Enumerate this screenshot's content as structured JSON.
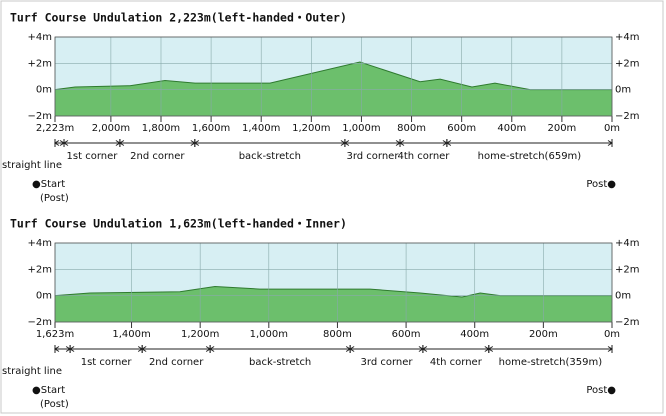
{
  "chart_data": [
    {
      "type": "area",
      "title": "Turf  Course  Undulation  2,223m(left-handed・Outer)",
      "x": [
        2223,
        2143,
        1924,
        1784,
        1664,
        1365,
        1006,
        766,
        686,
        559,
        467,
        327,
        0
      ],
      "values": [
        0,
        0.2,
        0.3,
        0.7,
        0.5,
        0.5,
        2.1,
        0.6,
        0.8,
        0.2,
        0.5,
        0,
        0
      ],
      "color": "#6cbf6c",
      "xlim": [
        2223,
        0
      ],
      "xticks": [
        {
          "value": 2223,
          "label": "2,223m"
        },
        {
          "value": 2000,
          "label": "2,000m"
        },
        {
          "value": 1800,
          "label": "1,800m"
        },
        {
          "value": 1600,
          "label": "1,600m"
        },
        {
          "value": 1400,
          "label": "1,400m"
        },
        {
          "value": 1200,
          "label": "1,200m"
        },
        {
          "value": 1000,
          "label": "1,000m"
        },
        {
          "value": 800,
          "label": "800m"
        },
        {
          "value": 600,
          "label": "600m"
        },
        {
          "value": 400,
          "label": "400m"
        },
        {
          "value": 200,
          "label": "200m"
        },
        {
          "value": 0,
          "label": "0m"
        }
      ],
      "ylim": [
        -2,
        4
      ],
      "yticks": [
        {
          "value": 4,
          "label": "+4m"
        },
        {
          "value": 2,
          "label": "+2m"
        },
        {
          "value": 0,
          "label": "0m"
        },
        {
          "value": -2,
          "label": "−2m"
        }
      ],
      "grid": true,
      "sections": [
        {
          "label": "straight line",
          "start": 2223,
          "end": 2187
        },
        {
          "label": "1st corner",
          "start": 2187,
          "end": 1964
        },
        {
          "label": "2nd corner",
          "start": 1964,
          "end": 1665
        },
        {
          "label": "back-stretch",
          "start": 1665,
          "end": 1066
        },
        {
          "label": "3rd corner",
          "start": 1066,
          "end": 846
        },
        {
          "label": "4th corner",
          "start": 846,
          "end": 659
        },
        {
          "label": "home-stretch(659m)",
          "start": 659,
          "end": 0
        }
      ],
      "start": "●Start",
      "start_note": "(Post)",
      "post": "Post●"
    },
    {
      "type": "area",
      "title": "Turf  Course  Undulation  1,623m(left-handed・Inner)",
      "x": [
        1623,
        1521,
        1259,
        1157,
        1026,
        705,
        559,
        437,
        384,
        326,
        0
      ],
      "values": [
        0,
        0.2,
        0.3,
        0.7,
        0.5,
        0.5,
        0.2,
        -0.1,
        0.2,
        0,
        0
      ],
      "color": "#6cbf6c",
      "xlim": [
        1623,
        0
      ],
      "xticks": [
        {
          "value": 1623,
          "label": "1,623m"
        },
        {
          "value": 1400,
          "label": "1,400m"
        },
        {
          "value": 1200,
          "label": "1,200m"
        },
        {
          "value": 1000,
          "label": "1,000m"
        },
        {
          "value": 800,
          "label": "800m"
        },
        {
          "value": 600,
          "label": "600m"
        },
        {
          "value": 400,
          "label": "400m"
        },
        {
          "value": 200,
          "label": "200m"
        },
        {
          "value": 0,
          "label": "0m"
        }
      ],
      "ylim": [
        -2,
        4
      ],
      "yticks": [
        {
          "value": 4,
          "label": "+4m"
        },
        {
          "value": 2,
          "label": "+2m"
        },
        {
          "value": 0,
          "label": "0m"
        },
        {
          "value": -2,
          "label": "−2m"
        }
      ],
      "grid": true,
      "sections": [
        {
          "label": "straight line",
          "start": 1623,
          "end": 1579
        },
        {
          "label": "1st corner",
          "start": 1579,
          "end": 1369
        },
        {
          "label": "2nd corner",
          "start": 1369,
          "end": 1171
        },
        {
          "label": "back-stretch",
          "start": 1171,
          "end": 763
        },
        {
          "label": "3rd corner",
          "start": 763,
          "end": 551
        },
        {
          "label": "4th corner",
          "start": 551,
          "end": 359
        },
        {
          "label": "home-stretch(359m)",
          "start": 359,
          "end": 0
        }
      ],
      "start": "●Start",
      "start_note": "(Post)",
      "post": "Post●"
    }
  ]
}
